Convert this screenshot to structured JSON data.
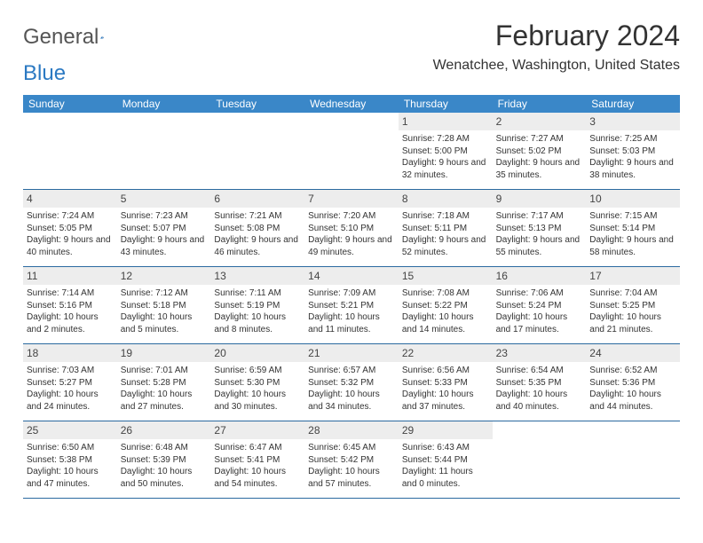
{
  "logo": {
    "text1": "General",
    "text2": "Blue"
  },
  "title": "February 2024",
  "location": "Wenatchee, Washington, United States",
  "colors": {
    "header_bg": "#3a87c8",
    "header_text": "#ffffff",
    "daynum_bg": "#ededed",
    "rule": "#2b6aa0",
    "logo_blue": "#2b79c2",
    "text": "#333333"
  },
  "weekdays": [
    "Sunday",
    "Monday",
    "Tuesday",
    "Wednesday",
    "Thursday",
    "Friday",
    "Saturday"
  ],
  "weeks": [
    [
      null,
      null,
      null,
      null,
      {
        "n": "1",
        "sunrise": "7:28 AM",
        "sunset": "5:00 PM",
        "daylight": "9 hours and 32 minutes."
      },
      {
        "n": "2",
        "sunrise": "7:27 AM",
        "sunset": "5:02 PM",
        "daylight": "9 hours and 35 minutes."
      },
      {
        "n": "3",
        "sunrise": "7:25 AM",
        "sunset": "5:03 PM",
        "daylight": "9 hours and 38 minutes."
      }
    ],
    [
      {
        "n": "4",
        "sunrise": "7:24 AM",
        "sunset": "5:05 PM",
        "daylight": "9 hours and 40 minutes."
      },
      {
        "n": "5",
        "sunrise": "7:23 AM",
        "sunset": "5:07 PM",
        "daylight": "9 hours and 43 minutes."
      },
      {
        "n": "6",
        "sunrise": "7:21 AM",
        "sunset": "5:08 PM",
        "daylight": "9 hours and 46 minutes."
      },
      {
        "n": "7",
        "sunrise": "7:20 AM",
        "sunset": "5:10 PM",
        "daylight": "9 hours and 49 minutes."
      },
      {
        "n": "8",
        "sunrise": "7:18 AM",
        "sunset": "5:11 PM",
        "daylight": "9 hours and 52 minutes."
      },
      {
        "n": "9",
        "sunrise": "7:17 AM",
        "sunset": "5:13 PM",
        "daylight": "9 hours and 55 minutes."
      },
      {
        "n": "10",
        "sunrise": "7:15 AM",
        "sunset": "5:14 PM",
        "daylight": "9 hours and 58 minutes."
      }
    ],
    [
      {
        "n": "11",
        "sunrise": "7:14 AM",
        "sunset": "5:16 PM",
        "daylight": "10 hours and 2 minutes."
      },
      {
        "n": "12",
        "sunrise": "7:12 AM",
        "sunset": "5:18 PM",
        "daylight": "10 hours and 5 minutes."
      },
      {
        "n": "13",
        "sunrise": "7:11 AM",
        "sunset": "5:19 PM",
        "daylight": "10 hours and 8 minutes."
      },
      {
        "n": "14",
        "sunrise": "7:09 AM",
        "sunset": "5:21 PM",
        "daylight": "10 hours and 11 minutes."
      },
      {
        "n": "15",
        "sunrise": "7:08 AM",
        "sunset": "5:22 PM",
        "daylight": "10 hours and 14 minutes."
      },
      {
        "n": "16",
        "sunrise": "7:06 AM",
        "sunset": "5:24 PM",
        "daylight": "10 hours and 17 minutes."
      },
      {
        "n": "17",
        "sunrise": "7:04 AM",
        "sunset": "5:25 PM",
        "daylight": "10 hours and 21 minutes."
      }
    ],
    [
      {
        "n": "18",
        "sunrise": "7:03 AM",
        "sunset": "5:27 PM",
        "daylight": "10 hours and 24 minutes."
      },
      {
        "n": "19",
        "sunrise": "7:01 AM",
        "sunset": "5:28 PM",
        "daylight": "10 hours and 27 minutes."
      },
      {
        "n": "20",
        "sunrise": "6:59 AM",
        "sunset": "5:30 PM",
        "daylight": "10 hours and 30 minutes."
      },
      {
        "n": "21",
        "sunrise": "6:57 AM",
        "sunset": "5:32 PM",
        "daylight": "10 hours and 34 minutes."
      },
      {
        "n": "22",
        "sunrise": "6:56 AM",
        "sunset": "5:33 PM",
        "daylight": "10 hours and 37 minutes."
      },
      {
        "n": "23",
        "sunrise": "6:54 AM",
        "sunset": "5:35 PM",
        "daylight": "10 hours and 40 minutes."
      },
      {
        "n": "24",
        "sunrise": "6:52 AM",
        "sunset": "5:36 PM",
        "daylight": "10 hours and 44 minutes."
      }
    ],
    [
      {
        "n": "25",
        "sunrise": "6:50 AM",
        "sunset": "5:38 PM",
        "daylight": "10 hours and 47 minutes."
      },
      {
        "n": "26",
        "sunrise": "6:48 AM",
        "sunset": "5:39 PM",
        "daylight": "10 hours and 50 minutes."
      },
      {
        "n": "27",
        "sunrise": "6:47 AM",
        "sunset": "5:41 PM",
        "daylight": "10 hours and 54 minutes."
      },
      {
        "n": "28",
        "sunrise": "6:45 AM",
        "sunset": "5:42 PM",
        "daylight": "10 hours and 57 minutes."
      },
      {
        "n": "29",
        "sunrise": "6:43 AM",
        "sunset": "5:44 PM",
        "daylight": "11 hours and 0 minutes."
      },
      null,
      null
    ]
  ],
  "labels": {
    "sunrise": "Sunrise: ",
    "sunset": "Sunset: ",
    "daylight": "Daylight: "
  }
}
